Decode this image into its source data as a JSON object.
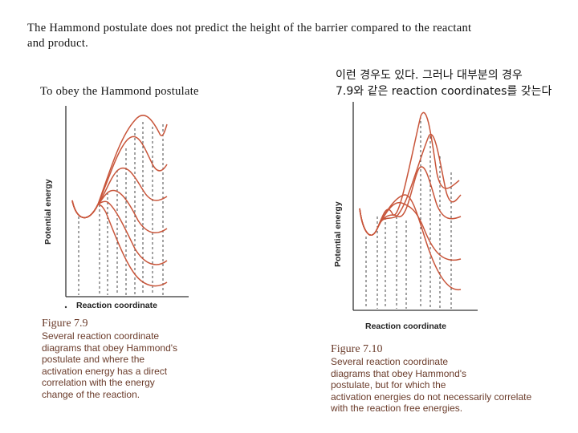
{
  "header": {
    "line1": "The Hammond postulate does not predict the height of the barrier compared to the reactant",
    "line2": "and product."
  },
  "left_caption": "To obey the Hammond postulate",
  "right_caption": {
    "line1": "이런 경우도 있다. 그러나 대부분의 경우",
    "line2": "7.9와 같은 reaction coordinates를 갖는다"
  },
  "figure_left": {
    "ylabel": "Potential energy",
    "xlabel": "Reaction coordinate",
    "number": "Figure 7.9",
    "caption": [
      "Several reaction coordinate",
      "diagrams that obey Hammond's",
      "postulate and where the",
      "activation energy has a direct",
      "correlation with the energy",
      "change of the reaction."
    ]
  },
  "figure_right": {
    "ylabel": "Potential energy",
    "xlabel": "Reaction coordinate",
    "number": "Figure 7.10",
    "caption": [
      "Several reaction coordinate",
      "diagrams that obey Hammond's",
      "postulate, but for which the",
      "activation energies do not necessarily correlate",
      "with the reaction free energies."
    ]
  },
  "colors": {
    "curve": "#c8553a",
    "axis": "#333333",
    "caption": "#6a3b2a"
  }
}
